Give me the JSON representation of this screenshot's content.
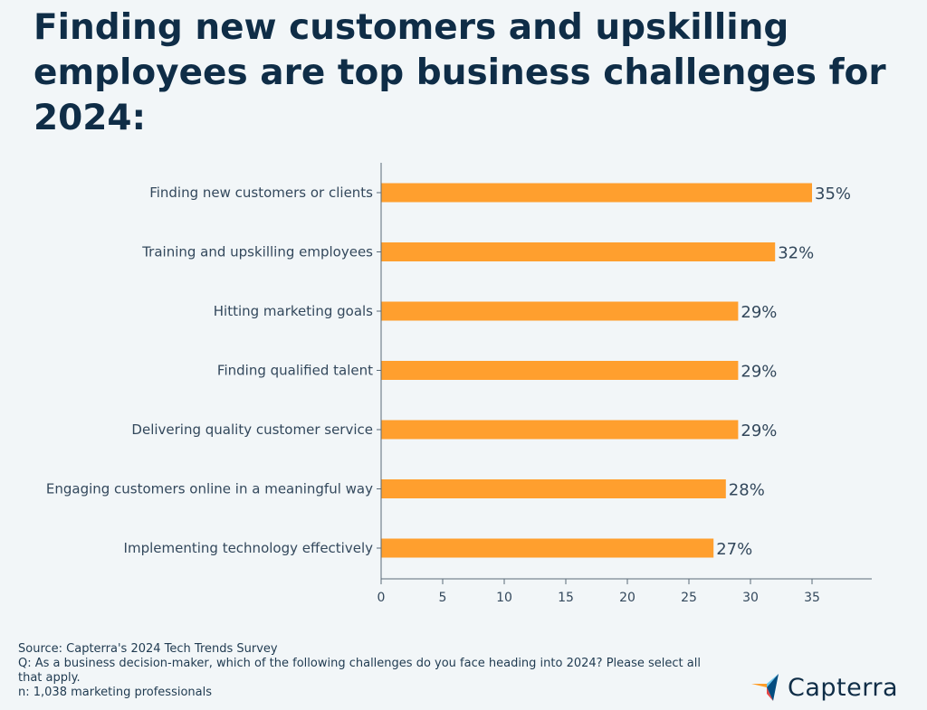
{
  "title": "Finding new customers and upskilling employees are top business challenges for 2024:",
  "chart_data": {
    "type": "bar",
    "orientation": "horizontal",
    "categories": [
      "Finding new customers or clients",
      "Training and upskilling employees",
      "Hitting marketing goals",
      "Finding qualified talent",
      "Delivering quality customer service",
      "Engaging customers online in a meaningful way",
      "Implementing technology effectively"
    ],
    "values": [
      35,
      32,
      29,
      29,
      29,
      28,
      27
    ],
    "value_labels": [
      "35%",
      "32%",
      "29%",
      "29%",
      "29%",
      "28%",
      "27%"
    ],
    "xticks": [
      0,
      5,
      10,
      15,
      20,
      25,
      30,
      35
    ],
    "xlim": [
      0,
      40
    ],
    "grid": false,
    "bar_color": "#ff9f2e"
  },
  "footer": {
    "source": "Source: Capterra's 2024 Tech Trends Survey",
    "question": "Q: As a business decision-maker, which of the following challenges do you face heading into 2024? Please select all that apply.",
    "sample": "n: 1,038 marketing professionals"
  },
  "logo": {
    "text": "Capterra",
    "icon": "capterra-arrow-icon",
    "colors": [
      "#ff9d28",
      "#68c5ed",
      "#044d80",
      "#e54747"
    ]
  }
}
